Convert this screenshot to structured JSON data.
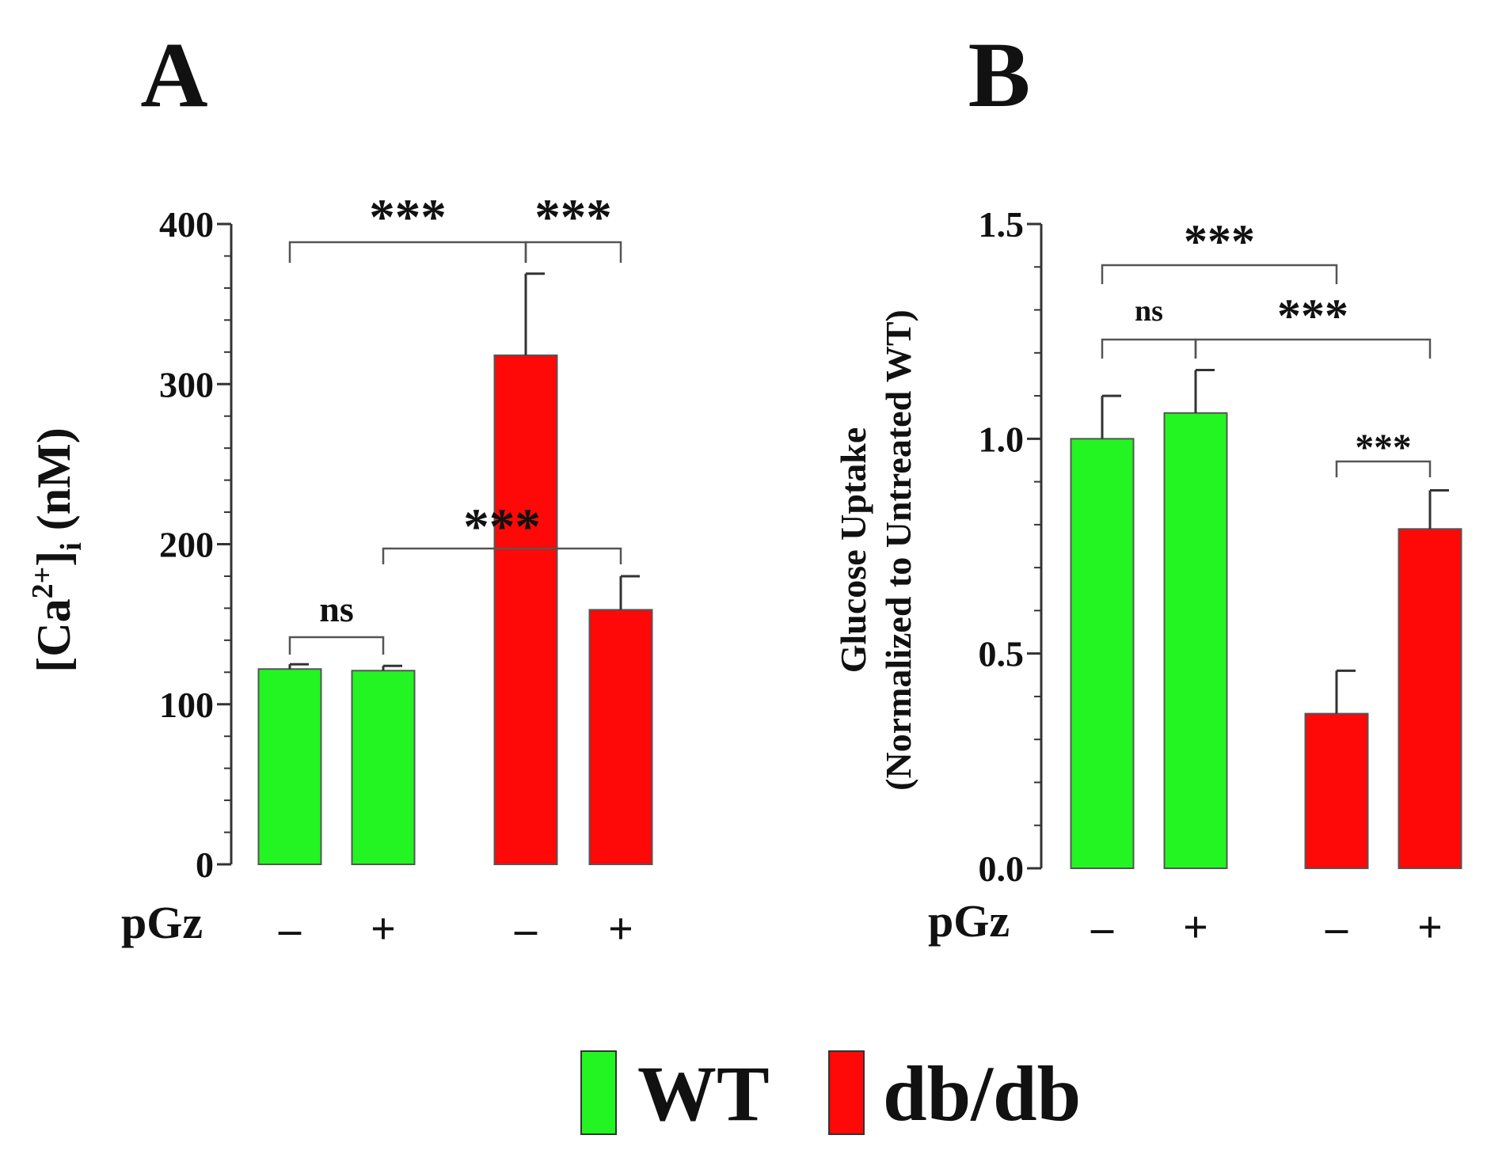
{
  "panels": [
    {
      "label": "A"
    },
    {
      "label": "B"
    }
  ],
  "legend": [
    {
      "label": "WT",
      "color": "#22f522"
    },
    {
      "label": "db/db",
      "color": "#ff0808"
    }
  ],
  "chart_data": [
    {
      "type": "bar",
      "panel": "A",
      "ylabel_main": "[Ca",
      "ylabel_sup": "2+",
      "ylabel_mid": "]",
      "ylabel_sub": "i",
      "ylabel_unit": " (nM)",
      "ylim": [
        0,
        400
      ],
      "yticks": [
        "0",
        "100",
        "200",
        "300",
        "400"
      ],
      "xlabel": "pGz",
      "categories": [
        "–",
        "+",
        "–",
        "+"
      ],
      "groups": [
        "WT",
        "WT",
        "db/db",
        "db/db"
      ],
      "values": [
        122,
        121,
        318,
        159
      ],
      "errors": [
        3,
        3,
        51,
        21
      ],
      "significance": [
        {
          "from": 0,
          "to": 2,
          "label": "***"
        },
        {
          "from": 2,
          "to": 3,
          "label": "***"
        },
        {
          "from": 1,
          "to": 3,
          "label": "***"
        },
        {
          "from": 0,
          "to": 1,
          "label": "ns"
        }
      ]
    },
    {
      "type": "bar",
      "panel": "B",
      "ylabel_line1": "Glucose Uptake",
      "ylabel_line2": "(Normalized to Untreated WT)",
      "ylim": [
        0,
        1.5
      ],
      "yticks": [
        "0.0",
        "0.5",
        "1.0",
        "1.5"
      ],
      "xlabel": "pGz",
      "categories": [
        "–",
        "+",
        "–",
        "+"
      ],
      "groups": [
        "WT",
        "WT",
        "db/db",
        "db/db"
      ],
      "values": [
        1.0,
        1.06,
        0.36,
        0.79
      ],
      "errors": [
        0.1,
        0.1,
        0.1,
        0.09
      ],
      "significance": [
        {
          "from": 0,
          "to": 2,
          "label": "***"
        },
        {
          "from": 0,
          "to": 1,
          "label": "ns"
        },
        {
          "from": 1,
          "to": 3,
          "label": "***"
        },
        {
          "from": 2,
          "to": 3,
          "label": "***"
        }
      ]
    }
  ]
}
